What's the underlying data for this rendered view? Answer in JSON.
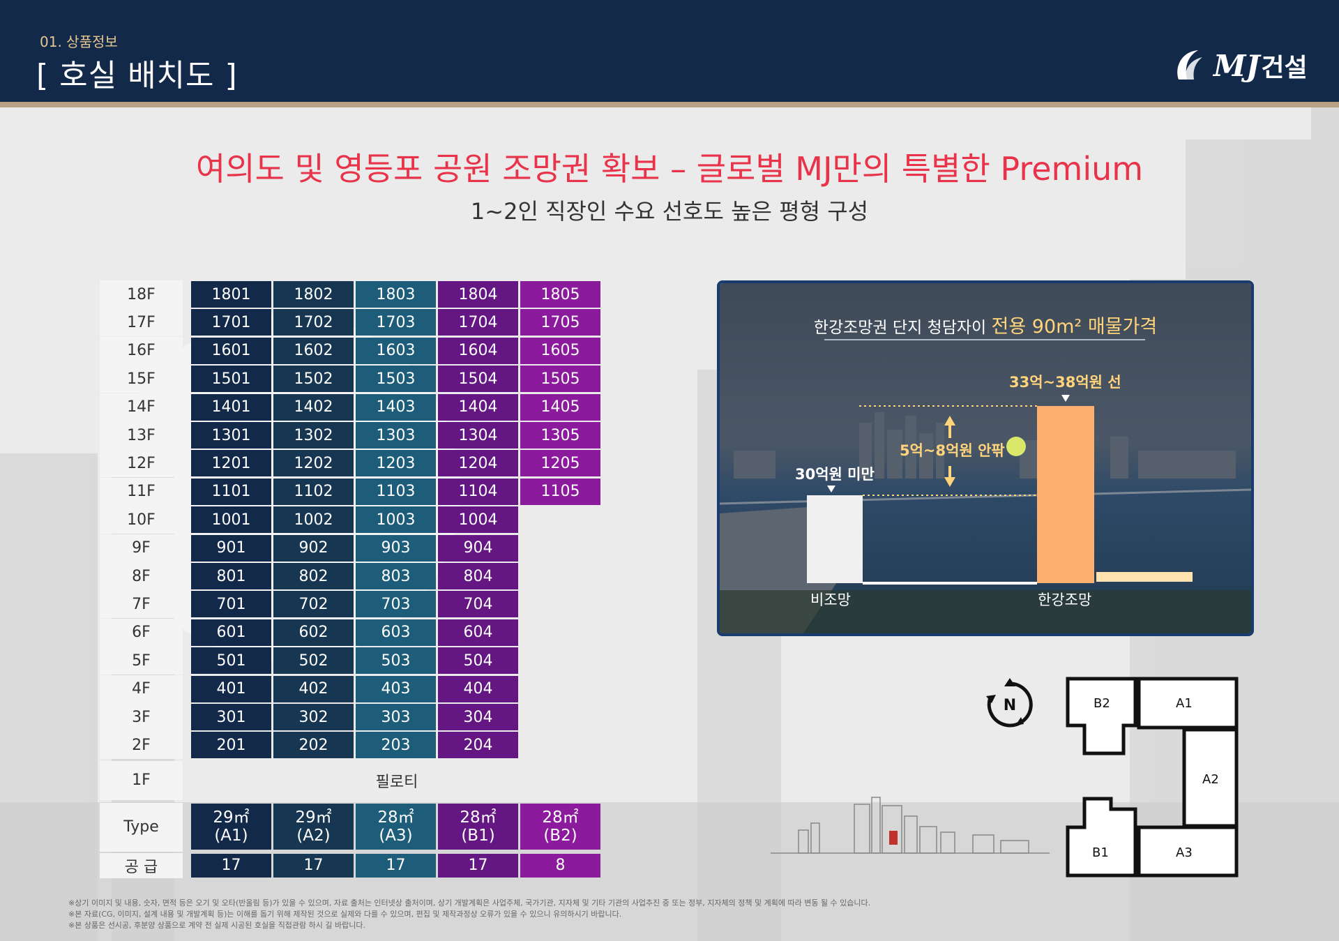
{
  "header": {
    "section": "01. 상품정보",
    "title": "[ 호실 배치도 ]",
    "logo_mark": "MJ",
    "logo_text": "건설"
  },
  "headline": "여의도 및 영등포 공원 조망권 확보 – 글로벌 MJ만의 특별한 Premium",
  "subline": "1~2인 직장인 수요 선호도 높은 평형 구성",
  "colors": {
    "header_bg": "#13294a",
    "accent_red": "#e8334a",
    "col_a1": "#13294a",
    "col_a2": "#163651",
    "col_a3": "#1d5d7a",
    "col_b1": "#641683",
    "col_b2": "#8b1a9d",
    "price_bar_low": "#f0f0f0",
    "price_bar_high": "#fcaf6e"
  },
  "floors": [
    {
      "floor": "18F",
      "units": [
        "1801",
        "1802",
        "1803",
        "1804",
        "1805"
      ]
    },
    {
      "floor": "17F",
      "units": [
        "1701",
        "1702",
        "1703",
        "1704",
        "1705"
      ]
    },
    {
      "floor": "16F",
      "units": [
        "1601",
        "1602",
        "1603",
        "1604",
        "1605"
      ]
    },
    {
      "floor": "15F",
      "units": [
        "1501",
        "1502",
        "1503",
        "1504",
        "1505"
      ]
    },
    {
      "floor": "14F",
      "units": [
        "1401",
        "1402",
        "1403",
        "1404",
        "1405"
      ]
    },
    {
      "floor": "13F",
      "units": [
        "1301",
        "1302",
        "1303",
        "1304",
        "1305"
      ]
    },
    {
      "floor": "12F",
      "units": [
        "1201",
        "1202",
        "1203",
        "1204",
        "1205"
      ]
    },
    {
      "floor": "11F",
      "units": [
        "1101",
        "1102",
        "1103",
        "1104",
        "1105"
      ]
    },
    {
      "floor": "10F",
      "units": [
        "1001",
        "1002",
        "1003",
        "1004"
      ]
    },
    {
      "floor": "9F",
      "units": [
        "901",
        "902",
        "903",
        "904"
      ]
    },
    {
      "floor": "8F",
      "units": [
        "801",
        "802",
        "803",
        "804"
      ]
    },
    {
      "floor": "7F",
      "units": [
        "701",
        "702",
        "703",
        "704"
      ]
    },
    {
      "floor": "6F",
      "units": [
        "601",
        "602",
        "603",
        "604"
      ]
    },
    {
      "floor": "5F",
      "units": [
        "501",
        "502",
        "503",
        "504"
      ]
    },
    {
      "floor": "4F",
      "units": [
        "401",
        "402",
        "403",
        "404"
      ]
    },
    {
      "floor": "3F",
      "units": [
        "301",
        "302",
        "303",
        "304"
      ]
    },
    {
      "floor": "2F",
      "units": [
        "201",
        "202",
        "203",
        "204"
      ]
    }
  ],
  "ground_floor": {
    "floor": "1F",
    "label": "필로티"
  },
  "type_row": {
    "label": "Type",
    "types": [
      {
        "area": "29㎡",
        "code": "(A1)"
      },
      {
        "area": "29㎡",
        "code": "(A2)"
      },
      {
        "area": "28㎡",
        "code": "(A3)"
      },
      {
        "area": "28㎡",
        "code": "(B1)"
      },
      {
        "area": "28㎡",
        "code": "(B2)"
      }
    ]
  },
  "supply_row": {
    "label": "공 급",
    "counts": [
      "17",
      "17",
      "17",
      "17",
      "8"
    ]
  },
  "price_panel": {
    "title_prefix": "한강조망권 단지 청담자이",
    "title_highlight": "전용 90m² 매물가격",
    "high_price": "33억~38억원 선",
    "low_price": "30억원 미만",
    "gap": "5억~8억원 안팎",
    "low_label": "비조망",
    "high_label": "한강조망",
    "chart_data": {
      "type": "bar",
      "categories": [
        "비조망",
        "한강조망"
      ],
      "values_text": [
        "30억원 미만",
        "33억~38억원 선"
      ]
    }
  },
  "site_plan": {
    "compass_icon": "north-compass-icon",
    "units": [
      "B2",
      "A1",
      "A2",
      "B1",
      "A3"
    ]
  },
  "footnotes": [
    "※상기 이미지 및 내용, 숫자, 면적 등은 오기 및 오타(반올림 등)가 있을 수 있으며, 자료 출처는 인터넷상 출처이며, 상기 개발계획은 사업주체, 국가기관, 지자체 및 기타 기관의 사업추진 중 또는 정부, 지자체의 정책 및 계획에 따라 변동 될 수 있습니다.",
    "※본 자료(CG, 이미지, 설계 내용 및 개발계획 등)는 이해를 돕기 위해 제작된 것으로 실제와 다를 수 있으며, 편집 및 제작과정상 오류가 있을 수 있으니 유의하시기 바랍니다.",
    "※본 상품은 선시공, 후분양 상품으로 계약 전 실제 시공된 호실을 직접관람 하시 길 바랍니다."
  ]
}
